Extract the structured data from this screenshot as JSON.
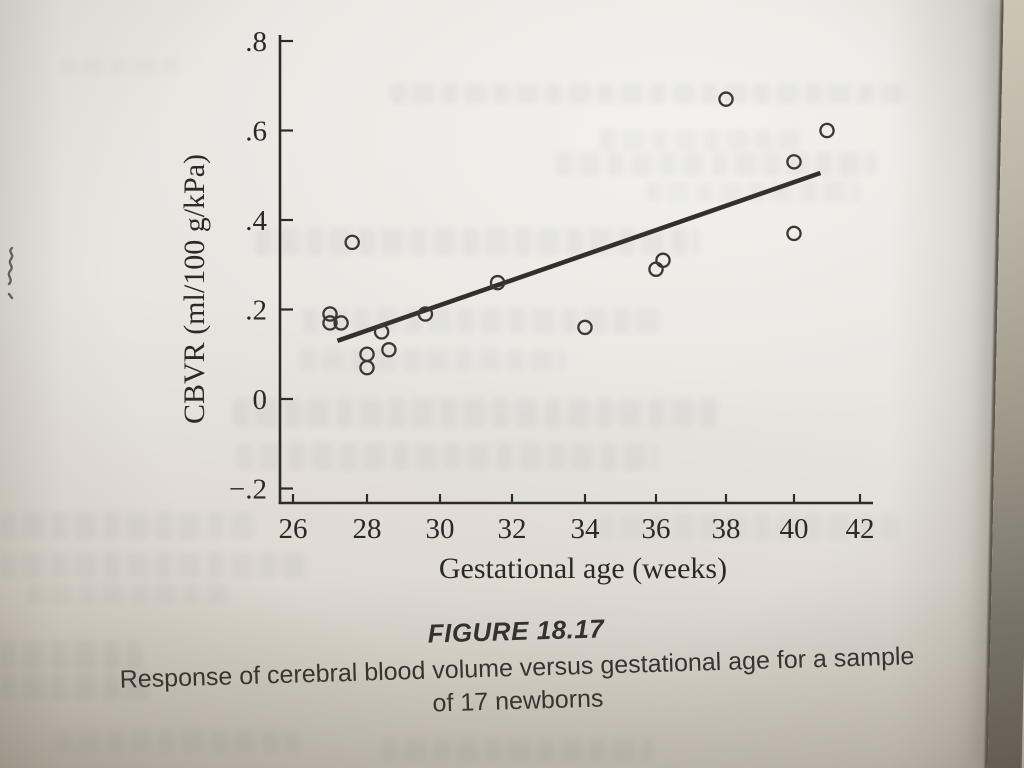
{
  "page": {
    "caption": {
      "figure_label": "FIGURE 18.17",
      "line1": "Response of cerebral blood volume versus gestational age for a sample",
      "line2": "of 17 newborns"
    }
  },
  "chart_data": {
    "type": "scatter",
    "title": "",
    "xlabel": "Gestational age (weeks)",
    "ylabel": "CBVR (ml/100 g/kPa)",
    "xlim": [
      26,
      42.4
    ],
    "ylim": [
      -0.23,
      0.82
    ],
    "grid": false,
    "legend": "none",
    "marker": "open-circle",
    "x_ticks": [
      26,
      28,
      30,
      32,
      34,
      36,
      38,
      40,
      42
    ],
    "y_ticks": [
      {
        "label": ".8",
        "value": 0.8
      },
      {
        "label": ".6",
        "value": 0.6
      },
      {
        "label": ".4",
        "value": 0.4
      },
      {
        "label": ".2",
        "value": 0.2
      },
      {
        "label": "0",
        "value": 0.0
      },
      {
        "label": "−.2",
        "value": -0.2
      }
    ],
    "points": [
      {
        "x": 27.0,
        "y": 0.19
      },
      {
        "x": 27.0,
        "y": 0.17
      },
      {
        "x": 27.3,
        "y": 0.17
      },
      {
        "x": 27.6,
        "y": 0.35
      },
      {
        "x": 28.0,
        "y": 0.1
      },
      {
        "x": 28.0,
        "y": 0.07
      },
      {
        "x": 28.4,
        "y": 0.15
      },
      {
        "x": 28.6,
        "y": 0.11
      },
      {
        "x": 29.6,
        "y": 0.19
      },
      {
        "x": 31.6,
        "y": 0.26
      },
      {
        "x": 34.0,
        "y": 0.16
      },
      {
        "x": 36.0,
        "y": 0.29
      },
      {
        "x": 36.2,
        "y": 0.31
      },
      {
        "x": 38.0,
        "y": 0.67
      },
      {
        "x": 40.0,
        "y": 0.37
      },
      {
        "x": 40.0,
        "y": 0.53
      },
      {
        "x": 41.0,
        "y": 0.6
      }
    ],
    "regression_line": {
      "x1": 27.2,
      "y1": 0.13,
      "x2": 40.8,
      "y2": 0.505
    }
  },
  "colors": {
    "ink": "#2e2c29",
    "paper": "#e7e5e0",
    "page_edge_dark": "#6a655c"
  }
}
